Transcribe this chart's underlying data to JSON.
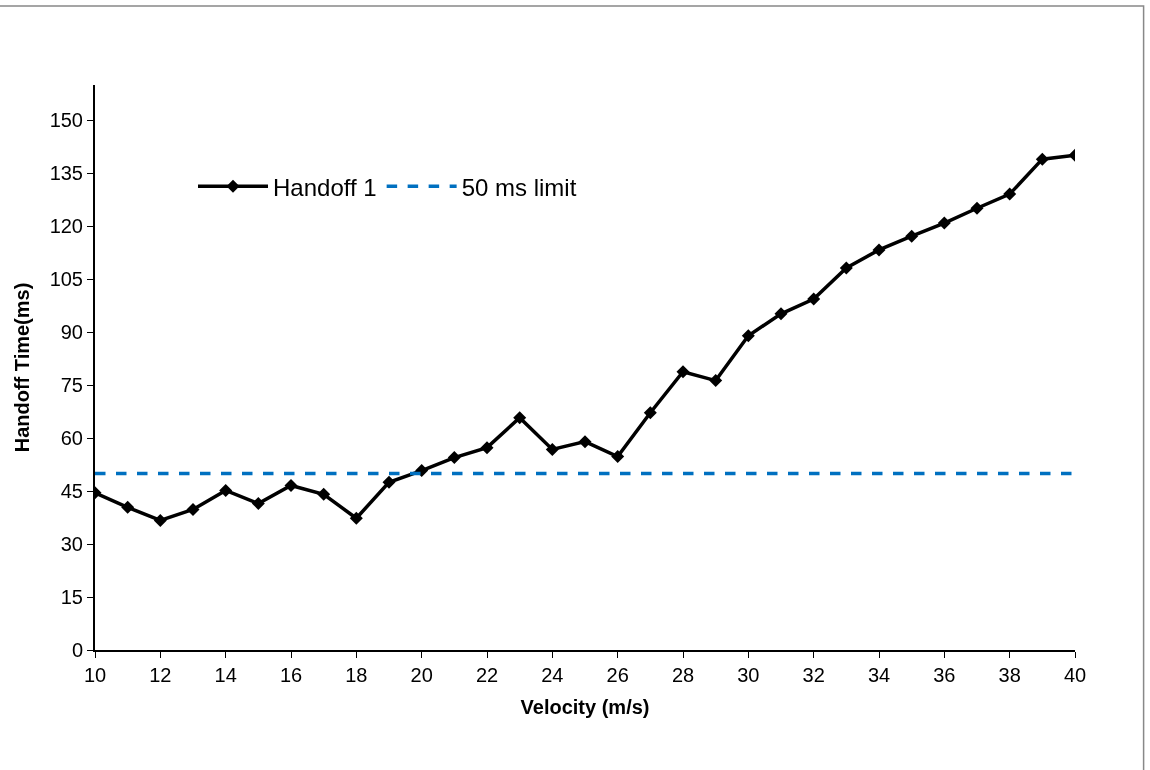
{
  "chart_data": {
    "type": "line",
    "xlabel": "Velocity (m/s)",
    "ylabel": "Handoff Time(ms)",
    "x": [
      10,
      11,
      12,
      13,
      14,
      15,
      16,
      17,
      18,
      19,
      20,
      21,
      22,
      23,
      24,
      25,
      26,
      27,
      28,
      29,
      30,
      31,
      32,
      33,
      34,
      35,
      36,
      37,
      38,
      39,
      40
    ],
    "series": [
      {
        "name": "Handoff 1",
        "color": "#000000",
        "marker": "diamond",
        "line_style": "solid",
        "values": [
          44.5,
          40.4,
          36.7,
          39.8,
          45.2,
          41.5,
          46.6,
          44.1,
          37.3,
          47.5,
          50.8,
          54.5,
          57.3,
          65.8,
          56.8,
          59,
          54.8,
          67.2,
          78.8,
          76.3,
          89,
          95.2,
          99.4,
          108.2,
          113.3,
          117.2,
          120.9,
          125.1,
          129.1,
          139,
          140.1
        ]
      }
    ],
    "ref_lines": [
      {
        "axis": "y",
        "value": 50,
        "label": "50 ms limit",
        "color": "#0070c0",
        "line_style": "dashed"
      }
    ],
    "xlim": [
      10,
      40
    ],
    "xticks": [
      10,
      12,
      14,
      16,
      18,
      20,
      22,
      24,
      26,
      28,
      30,
      32,
      34,
      36,
      38,
      40
    ],
    "ylim": [
      0,
      160
    ],
    "yticks": [
      0,
      15,
      30,
      45,
      60,
      75,
      90,
      105,
      120,
      135,
      150
    ],
    "legend": "top left"
  }
}
